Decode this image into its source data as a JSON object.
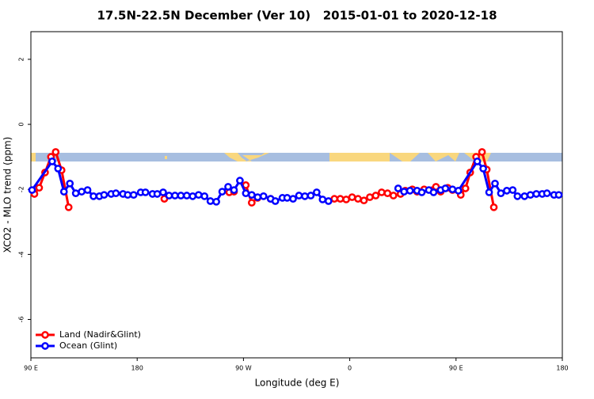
{
  "chart_data": {
    "type": "line",
    "title": "17.5N-22.5N December (Ver 10)   2015-01-01 to 2020-12-18",
    "xlabel": "Longitude (deg E)",
    "ylabel": "XCO2 - MLO trend (ppm)",
    "xlim": [
      90,
      540
    ],
    "xticks": [
      {
        "value": 90,
        "label": "90 E"
      },
      180,
      {
        "value": 270,
        "label": "90 W"
      },
      {
        "value": 360,
        "label": "0"
      },
      {
        "value": 450,
        "label": "90 E"
      },
      {
        "value": 540,
        "label": "180"
      }
    ],
    "ylim": [
      -7.18,
      2.85
    ],
    "yticks": [
      2,
      0,
      -2,
      -4,
      -6
    ],
    "legend": "bottomleft",
    "series": [
      {
        "name": "Land (Nadir&Glint)",
        "color": "#ff0000",
        "x": [
          93,
          97,
          102,
          107,
          111,
          116,
          122,
          160,
          203,
          230,
          258,
          262,
          267,
          272,
          277,
          282,
          288,
          293,
          320,
          347,
          352,
          357,
          362,
          367,
          372,
          377,
          382,
          387,
          392,
          397,
          403,
          407,
          413,
          417,
          423,
          433,
          437,
          443,
          447,
          454,
          458,
          462,
          467,
          472,
          476,
          482
        ],
        "values": [
          -2.14,
          -1.95,
          -1.48,
          -1.0,
          -0.85,
          -1.41,
          -2.55,
          null,
          -2.29,
          null,
          -2.09,
          -2.07,
          null,
          -1.87,
          -2.41,
          -2.26,
          null,
          -2.29,
          null,
          -2.29,
          -2.29,
          -2.31,
          -2.24,
          -2.29,
          -2.34,
          -2.24,
          -2.19,
          -2.09,
          -2.12,
          -2.19,
          -2.14,
          -2.04,
          -2.0,
          -2.07,
          -2.0,
          -1.92,
          -2.07,
          -1.95,
          -2.02,
          -2.17,
          -1.97,
          -1.48,
          -1.0,
          -0.85,
          -1.39,
          -2.55
        ]
      },
      {
        "name": "Ocean (Glint)",
        "color": "#0000ff",
        "x": [
          91,
          108,
          113,
          118,
          123,
          128,
          133,
          138,
          143,
          148,
          152,
          158,
          162,
          168,
          172,
          177,
          183,
          187,
          193,
          197,
          202,
          207,
          212,
          217,
          222,
          227,
          232,
          237,
          242,
          247,
          252,
          257,
          262,
          267,
          272,
          277,
          282,
          287,
          293,
          297,
          303,
          307,
          312,
          317,
          322,
          327,
          332,
          337,
          342,
          370,
          401,
          406,
          411,
          417,
          421,
          427,
          431,
          437,
          441,
          447,
          452,
          468,
          473,
          478,
          483,
          488,
          493,
          498,
          502,
          508,
          513,
          518,
          523,
          527,
          533,
          537
        ],
        "values": [
          -2.02,
          -1.14,
          -1.36,
          -2.07,
          -1.82,
          -2.12,
          -2.07,
          -2.02,
          -2.21,
          -2.21,
          -2.17,
          -2.14,
          -2.12,
          -2.14,
          -2.17,
          -2.17,
          -2.09,
          -2.09,
          -2.14,
          -2.14,
          -2.09,
          -2.19,
          -2.19,
          -2.19,
          -2.19,
          -2.21,
          -2.17,
          -2.21,
          -2.36,
          -2.38,
          -2.07,
          -1.92,
          -2.02,
          -1.73,
          -2.12,
          -2.17,
          -2.24,
          -2.21,
          -2.29,
          -2.36,
          -2.26,
          -2.26,
          -2.29,
          -2.19,
          -2.21,
          -2.19,
          -2.09,
          -2.31,
          -2.36,
          null,
          -1.97,
          -2.07,
          -2.04,
          -2.04,
          -2.09,
          -2.02,
          -2.09,
          -2.02,
          -1.97,
          -2.0,
          -2.04,
          -1.14,
          -1.36,
          -2.09,
          -1.82,
          -2.12,
          -2.04,
          -2.02,
          -2.21,
          -2.21,
          -2.17,
          -2.14,
          -2.14,
          -2.12,
          -2.17,
          -2.17
        ]
      }
    ]
  }
}
